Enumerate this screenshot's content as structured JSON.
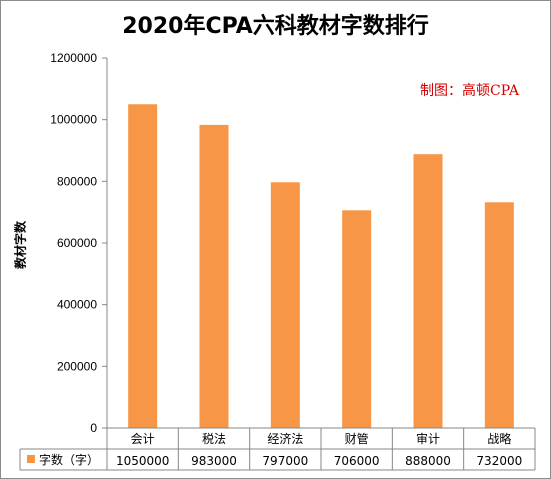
{
  "colors": {
    "bar": "#F79646",
    "axis": "#878787",
    "grid": "#a0a0a0"
  },
  "watermark": "制图：高顿CPA",
  "chart_data": {
    "type": "bar",
    "title": "2020年CPA六科教材字数排行",
    "xlabel": "",
    "ylabel": "教材字数",
    "ylim": [
      0,
      1200000
    ],
    "yticks": [
      "0",
      "200000",
      "400000",
      "600000",
      "800000",
      "1000000",
      "1200000"
    ],
    "categories": [
      "会计",
      "税法",
      "经济法",
      "财管",
      "审计",
      "战略"
    ],
    "series": [
      {
        "name": "字数（字）",
        "values": [
          1050000,
          983000,
          797000,
          706000,
          888000,
          732000
        ],
        "labels": [
          "1050000",
          "983000",
          "797000",
          "706000",
          "888000",
          "732000"
        ]
      }
    ],
    "grid": false,
    "legend": "data-table-left"
  }
}
